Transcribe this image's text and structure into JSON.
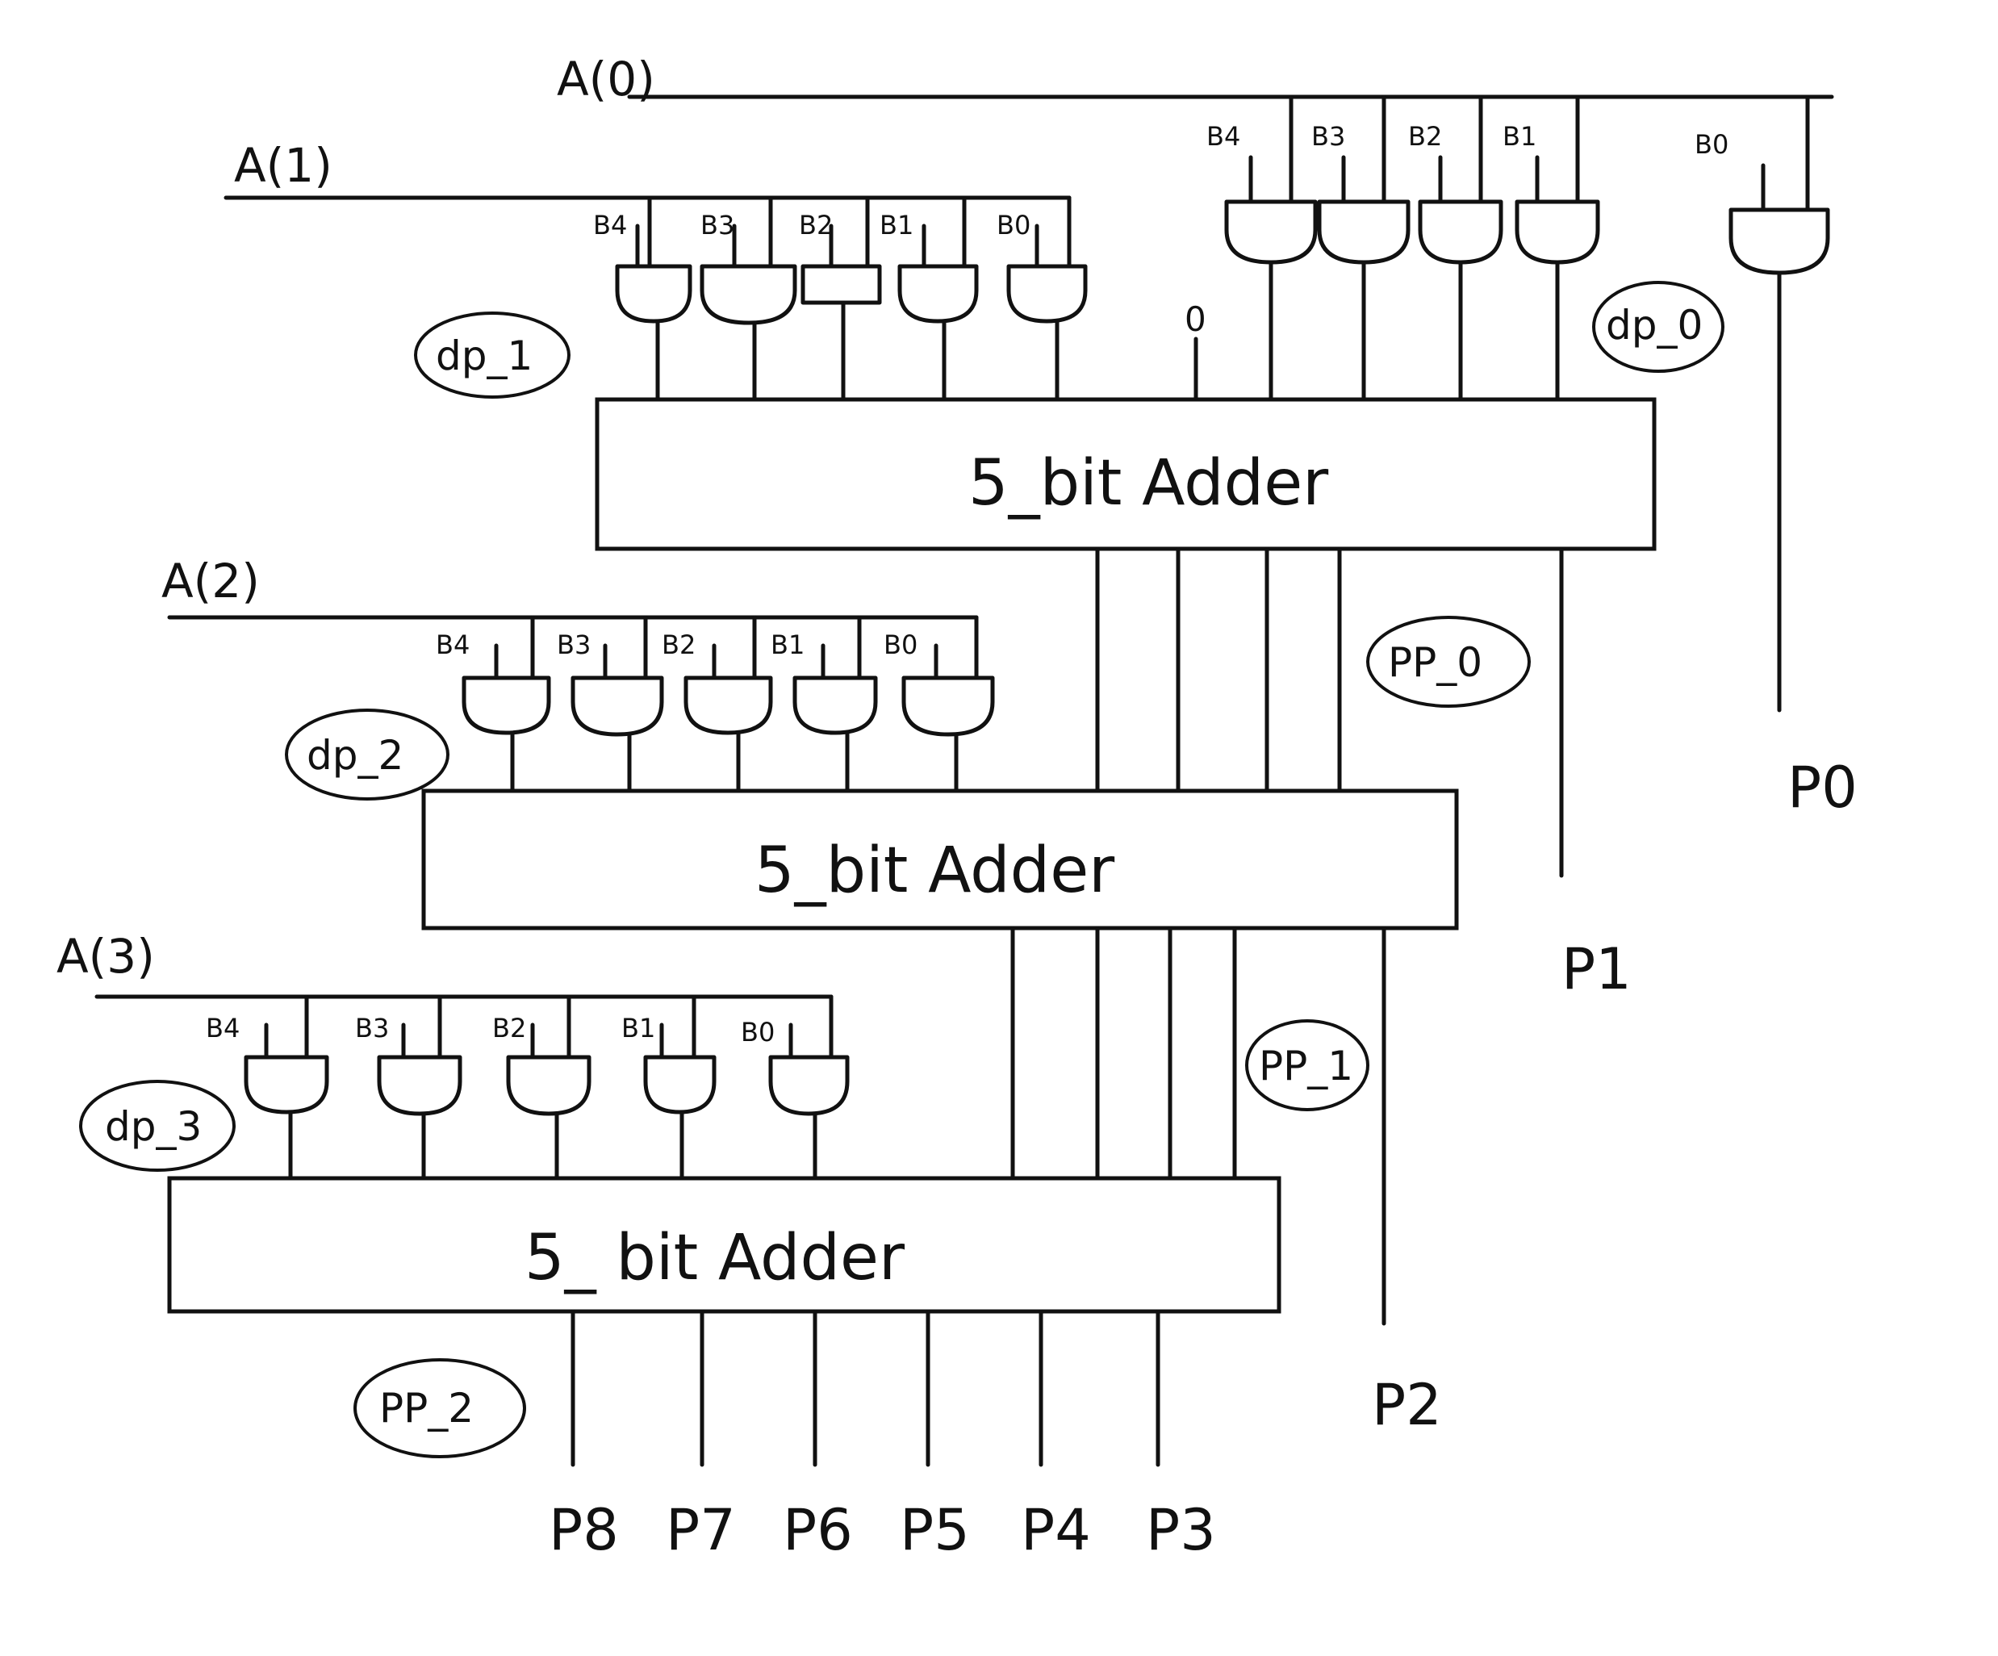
{
  "rows": [
    {
      "bus": "A(0)",
      "tag": "dp_0",
      "bit_labels": [
        "B4",
        "B3",
        "B2",
        "B1",
        "B0"
      ],
      "extra_input": "0"
    },
    {
      "bus": "A(1)",
      "tag": "dp_1",
      "bit_labels": [
        "B4",
        "B3",
        "B2",
        "B1",
        "B0"
      ],
      "adder": "5_bit Adder",
      "pp": "PP_0"
    },
    {
      "bus": "A(2)",
      "tag": "dp_2",
      "bit_labels": [
        "B4",
        "B3",
        "B2",
        "B1",
        "B0"
      ],
      "adder": "5_bit Adder",
      "pp": "PP_1"
    },
    {
      "bus": "A(3)",
      "tag": "dp_3",
      "bit_labels": [
        "B4",
        "B3",
        "B2",
        "B1",
        "B0"
      ],
      "adder": "5_ bit Adder",
      "pp": "PP_2"
    }
  ],
  "outputs": {
    "p0": "P0",
    "p1": "P1",
    "p2": "P2",
    "p3": "P3",
    "p4": "P4",
    "p5": "P5",
    "p6": "P6",
    "p7": "P7",
    "p8": "P8"
  }
}
